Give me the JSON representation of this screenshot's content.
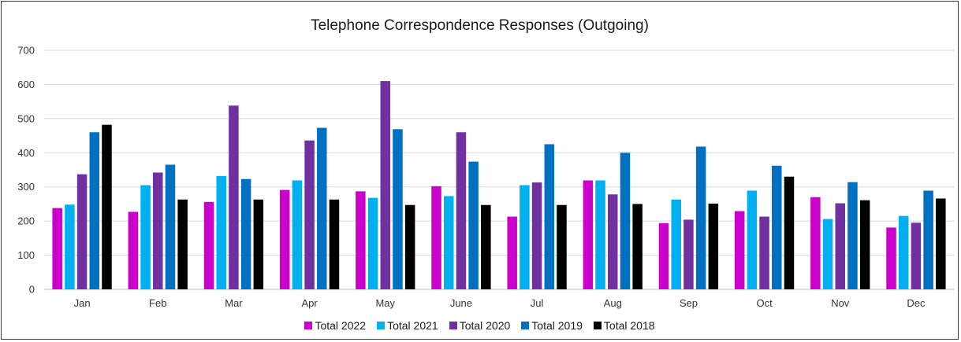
{
  "chart_data": {
    "type": "bar",
    "title": "Telephone Correspondence Responses (Outgoing)",
    "xlabel": "",
    "ylabel": "",
    "ylim": [
      0,
      700
    ],
    "yticks": [
      0,
      100,
      200,
      300,
      400,
      500,
      600,
      700
    ],
    "grid": true,
    "legend_position": "bottom",
    "categories": [
      "Jan",
      "Feb",
      "Mar",
      "Apr",
      "May",
      "June",
      "Jul",
      "Aug",
      "Sep",
      "Oct",
      "Nov",
      "Dec"
    ],
    "series": [
      {
        "name": "Total 2022",
        "color": "#cc00cc",
        "values": [
          238,
          227,
          256,
          291,
          287,
          302,
          213,
          319,
          194,
          229,
          270,
          181
        ]
      },
      {
        "name": "Total 2021",
        "color": "#00b0f0",
        "values": [
          248,
          305,
          332,
          319,
          268,
          273,
          305,
          319,
          263,
          289,
          206,
          215
        ]
      },
      {
        "name": "Total 2020",
        "color": "#7030a0",
        "values": [
          337,
          342,
          538,
          436,
          610,
          460,
          313,
          278,
          204,
          213,
          252,
          195
        ]
      },
      {
        "name": "Total 2019",
        "color": "#0070c0",
        "values": [
          460,
          365,
          323,
          473,
          469,
          374,
          425,
          400,
          418,
          362,
          314,
          289
        ]
      },
      {
        "name": "Total 2018",
        "color": "#000000",
        "values": [
          482,
          263,
          263,
          263,
          247,
          247,
          247,
          250,
          251,
          330,
          261,
          266
        ]
      }
    ]
  }
}
